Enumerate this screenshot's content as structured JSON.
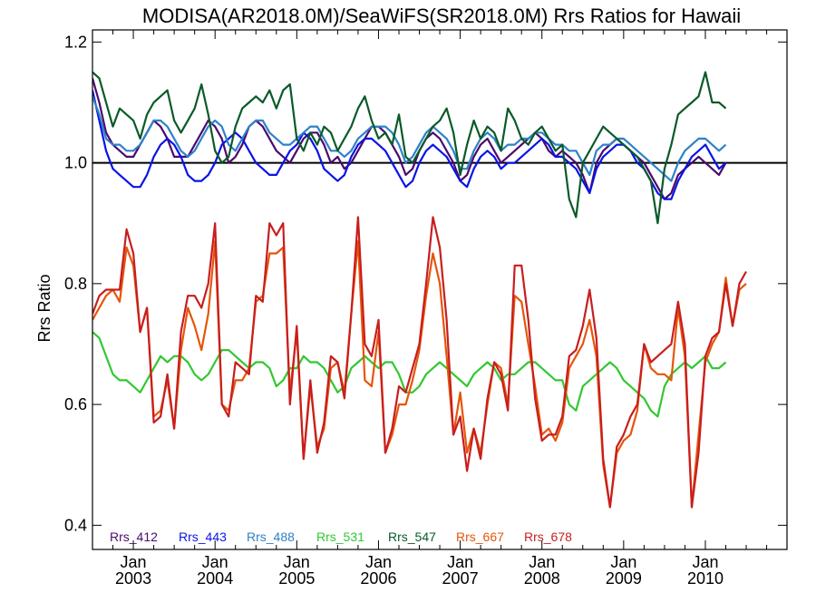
{
  "chart_data": {
    "type": "line",
    "title": "MODISA(AR2018.0M)/SeaWiFS(SR2018.0M)  Rrs Ratios for Hawaii",
    "xlabel": "",
    "ylabel": "Rrs Ratio",
    "ylim": [
      0.36,
      1.22
    ],
    "xlim": [
      "2002-07-01",
      "2010-12-31"
    ],
    "yticks": [
      "0.4",
      "0.6",
      "0.8",
      "1.0",
      "1.2"
    ],
    "xticks": [
      {
        "month": "Jan",
        "year": "2003",
        "date": "2003-01-01"
      },
      {
        "month": "Jan",
        "year": "2004",
        "date": "2004-01-01"
      },
      {
        "month": "Jan",
        "year": "2005",
        "date": "2005-01-01"
      },
      {
        "month": "Jan",
        "year": "2006",
        "date": "2006-01-01"
      },
      {
        "month": "Jan",
        "year": "2007",
        "date": "2007-01-01"
      },
      {
        "month": "Jan",
        "year": "2008",
        "date": "2008-01-01"
      },
      {
        "month": "Jan",
        "year": "2009",
        "date": "2009-01-01"
      },
      {
        "month": "Jan",
        "year": "2010",
        "date": "2010-01-01"
      }
    ],
    "reference_line": 1.0,
    "legend_position": "bottom",
    "series": [
      {
        "name": "Rrs_412",
        "color": "#4b0a6e",
        "x_start": "2002-07",
        "values": [
          1.14,
          1.1,
          1.05,
          1.03,
          1.02,
          1.01,
          1.01,
          1.03,
          1.05,
          1.07,
          1.06,
          1.04,
          1.01,
          1.01,
          1.01,
          1.03,
          1.05,
          1.07,
          1.06,
          1.04,
          1.0,
          1.01,
          1.03,
          1.06,
          1.07,
          1.06,
          1.04,
          1.02,
          1.01,
          1.0,
          1.02,
          1.04,
          1.05,
          1.05,
          1.03,
          1.0,
          1.01,
          0.99,
          1.0,
          1.02,
          1.04,
          1.06,
          1.06,
          1.05,
          1.03,
          1.01,
          0.98,
          0.99,
          1.02,
          1.04,
          1.05,
          1.04,
          1.02,
          1.0,
          0.97,
          0.98,
          1.01,
          1.03,
          1.04,
          1.02,
          1.0,
          1.01,
          1.02,
          1.03,
          1.04,
          1.05,
          1.04,
          1.02,
          1.01,
          1.02,
          1.01,
          1.0,
          0.98,
          0.95,
          1.0,
          1.02,
          1.03,
          1.04,
          1.03,
          1.02,
          1.01,
          1.0,
          0.98,
          0.96,
          0.94,
          0.95,
          0.98,
          0.99,
          1.0,
          1.01,
          1.0,
          0.99,
          0.98,
          1.0
        ]
      },
      {
        "name": "Rrs_443",
        "color": "#0a14e6",
        "x_start": "2002-07",
        "values": [
          1.12,
          1.07,
          1.02,
          0.99,
          0.98,
          0.97,
          0.96,
          0.96,
          0.98,
          1.01,
          1.03,
          1.04,
          1.03,
          1.01,
          0.98,
          0.97,
          0.97,
          0.98,
          1.0,
          1.03,
          1.04,
          1.05,
          1.04,
          1.02,
          1.0,
          0.99,
          0.98,
          0.98,
          1.0,
          1.02,
          1.03,
          1.05,
          1.04,
          1.02,
          0.99,
          0.98,
          0.97,
          0.98,
          1.01,
          1.03,
          1.04,
          1.04,
          1.03,
          1.02,
          1.0,
          0.98,
          0.96,
          0.97,
          1.0,
          1.02,
          1.03,
          1.02,
          1.01,
          0.99,
          0.97,
          0.96,
          0.99,
          1.01,
          1.02,
          1.01,
          0.99,
          1.0,
          1.0,
          1.01,
          1.02,
          1.03,
          1.04,
          1.03,
          1.01,
          1.01,
          1.0,
          0.99,
          0.97,
          0.95,
          0.99,
          1.01,
          1.02,
          1.03,
          1.03,
          1.02,
          1.0,
          0.99,
          0.97,
          0.95,
          0.94,
          0.94,
          0.97,
          0.99,
          1.01,
          1.02,
          1.03,
          1.01,
          0.99,
          1.0
        ]
      },
      {
        "name": "Rrs_488",
        "color": "#2d82c8",
        "x_start": "2002-07",
        "values": [
          1.11,
          1.08,
          1.04,
          1.03,
          1.03,
          1.02,
          1.02,
          1.03,
          1.05,
          1.07,
          1.07,
          1.06,
          1.04,
          1.02,
          1.01,
          1.02,
          1.04,
          1.06,
          1.07,
          1.06,
          1.03,
          1.02,
          1.04,
          1.06,
          1.07,
          1.07,
          1.05,
          1.04,
          1.03,
          1.03,
          1.04,
          1.05,
          1.06,
          1.06,
          1.04,
          1.02,
          1.02,
          1.01,
          1.02,
          1.04,
          1.05,
          1.06,
          1.06,
          1.06,
          1.05,
          1.03,
          1.0,
          1.01,
          1.03,
          1.05,
          1.06,
          1.05,
          1.04,
          1.02,
          0.99,
          0.99,
          1.02,
          1.04,
          1.05,
          1.04,
          1.02,
          1.03,
          1.03,
          1.04,
          1.04,
          1.05,
          1.05,
          1.04,
          1.03,
          1.03,
          1.02,
          1.02,
          1.0,
          0.98,
          1.02,
          1.03,
          1.03,
          1.04,
          1.04,
          1.03,
          1.02,
          1.01,
          1.0,
          0.99,
          0.98,
          0.97,
          1.0,
          1.02,
          1.03,
          1.04,
          1.04,
          1.03,
          1.02,
          1.03
        ]
      },
      {
        "name": "Rrs_531",
        "color": "#32c832",
        "x_start": "2002-07",
        "values": [
          0.72,
          0.71,
          0.68,
          0.65,
          0.64,
          0.64,
          0.63,
          0.62,
          0.64,
          0.66,
          0.68,
          0.67,
          0.68,
          0.68,
          0.67,
          0.65,
          0.64,
          0.65,
          0.67,
          0.69,
          0.69,
          0.68,
          0.67,
          0.66,
          0.67,
          0.67,
          0.66,
          0.63,
          0.64,
          0.66,
          0.66,
          0.68,
          0.67,
          0.67,
          0.66,
          0.64,
          0.62,
          0.63,
          0.66,
          0.67,
          0.68,
          0.67,
          0.66,
          0.67,
          0.67,
          0.65,
          0.62,
          0.62,
          0.63,
          0.65,
          0.66,
          0.67,
          0.66,
          0.65,
          0.64,
          0.63,
          0.65,
          0.66,
          0.67,
          0.66,
          0.64,
          0.65,
          0.65,
          0.66,
          0.67,
          0.67,
          0.66,
          0.65,
          0.64,
          0.64,
          0.6,
          0.59,
          0.63,
          0.64,
          0.65,
          0.66,
          0.67,
          0.66,
          0.64,
          0.63,
          0.62,
          0.61,
          0.59,
          0.58,
          0.63,
          0.65,
          0.66,
          0.67,
          0.66,
          0.67,
          0.68,
          0.66,
          0.66,
          0.67
        ]
      },
      {
        "name": "Rrs_547",
        "color": "#0a5a28",
        "x_start": "2002-07",
        "values": [
          1.15,
          1.14,
          1.1,
          1.06,
          1.09,
          1.08,
          1.07,
          1.04,
          1.08,
          1.1,
          1.11,
          1.12,
          1.07,
          1.05,
          1.07,
          1.09,
          1.13,
          1.08,
          1.02,
          1.0,
          1.01,
          1.06,
          1.09,
          1.1,
          1.11,
          1.1,
          1.12,
          1.09,
          1.12,
          1.13,
          1.04,
          1.02,
          1.05,
          1.03,
          1.06,
          1.05,
          1.02,
          1.04,
          1.06,
          1.09,
          1.11,
          1.07,
          1.04,
          1.05,
          1.03,
          1.08,
          1.01,
          1.0,
          1.02,
          1.04,
          1.06,
          1.07,
          1.09,
          1.05,
          0.98,
          1.03,
          1.07,
          1.04,
          1.06,
          1.05,
          1.02,
          1.09,
          1.07,
          1.04,
          1.03,
          1.05,
          1.06,
          1.04,
          1.02,
          1.03,
          0.94,
          0.91,
          1.0,
          1.02,
          1.04,
          1.06,
          1.05,
          1.04,
          1.03,
          1.02,
          1.01,
          0.99,
          0.97,
          0.9,
          0.99,
          1.03,
          1.08,
          1.09,
          1.1,
          1.11,
          1.15,
          1.1,
          1.1,
          1.09
        ]
      },
      {
        "name": "Rrs_667",
        "color": "#e6550a",
        "x_start": "2002-07",
        "values": [
          0.74,
          0.76,
          0.78,
          0.79,
          0.77,
          0.86,
          0.83,
          0.72,
          0.76,
          0.58,
          0.59,
          0.64,
          0.56,
          0.69,
          0.76,
          0.73,
          0.69,
          0.75,
          0.87,
          0.6,
          0.59,
          0.64,
          0.64,
          0.66,
          0.77,
          0.78,
          0.85,
          0.85,
          0.86,
          0.62,
          0.72,
          0.51,
          0.63,
          0.53,
          0.56,
          0.66,
          0.67,
          0.62,
          0.75,
          0.87,
          0.64,
          0.63,
          0.72,
          0.52,
          0.55,
          0.6,
          0.6,
          0.64,
          0.69,
          0.78,
          0.85,
          0.8,
          0.68,
          0.55,
          0.62,
          0.52,
          0.56,
          0.52,
          0.6,
          0.67,
          0.66,
          0.6,
          0.78,
          0.77,
          0.7,
          0.63,
          0.55,
          0.56,
          0.54,
          0.57,
          0.66,
          0.68,
          0.7,
          0.74,
          0.68,
          0.5,
          0.43,
          0.52,
          0.54,
          0.55,
          0.59,
          0.7,
          0.66,
          0.65,
          0.65,
          0.64,
          0.76,
          0.68,
          0.43,
          0.55,
          0.67,
          0.7,
          0.72,
          0.81,
          0.73,
          0.79,
          0.8
        ]
      },
      {
        "name": "Rrs_678",
        "color": "#c81e1e",
        "x_start": "2002-07",
        "values": [
          0.75,
          0.78,
          0.79,
          0.79,
          0.79,
          0.89,
          0.85,
          0.72,
          0.76,
          0.57,
          0.58,
          0.65,
          0.56,
          0.72,
          0.78,
          0.78,
          0.76,
          0.8,
          0.9,
          0.6,
          0.58,
          0.67,
          0.66,
          0.65,
          0.78,
          0.77,
          0.9,
          0.88,
          0.9,
          0.6,
          0.73,
          0.51,
          0.64,
          0.52,
          0.57,
          0.68,
          0.67,
          0.61,
          0.75,
          0.91,
          0.7,
          0.68,
          0.74,
          0.52,
          0.56,
          0.63,
          0.62,
          0.66,
          0.7,
          0.8,
          0.91,
          0.86,
          0.74,
          0.55,
          0.58,
          0.49,
          0.56,
          0.51,
          0.61,
          0.67,
          0.65,
          0.59,
          0.83,
          0.83,
          0.74,
          0.61,
          0.54,
          0.55,
          0.55,
          0.58,
          0.68,
          0.69,
          0.73,
          0.79,
          0.71,
          0.51,
          0.43,
          0.53,
          0.55,
          0.58,
          0.6,
          0.7,
          0.67,
          0.68,
          0.69,
          0.7,
          0.77,
          0.7,
          0.43,
          0.52,
          0.68,
          0.71,
          0.72,
          0.8,
          0.73,
          0.8,
          0.82
        ]
      }
    ]
  }
}
